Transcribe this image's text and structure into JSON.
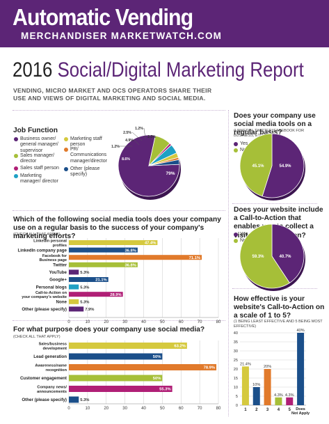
{
  "brand": {
    "title": "Automatic Vending",
    "subtitle": "MERCHANDISER  MARKETWATCH.COM"
  },
  "report": {
    "year": "2016",
    "title": "Social/Digital Marketing Report",
    "intro": "VENDING, MICRO MARKET AND OCS OPERATORS SHARE THEIR USE AND VIEWS OF DIGITAL MARKETING AND SOCIAL MEDIA."
  },
  "colors": {
    "purple": "#5c2576",
    "green": "#a6bf38",
    "blue": "#1b4f8a",
    "orange": "#e17a2b",
    "teal": "#1ea0c4",
    "magenta": "#b01f76",
    "yellow": "#d5c93e"
  },
  "job_legend": [
    {
      "label": "Business owner/ general manager/ supervisor",
      "color": "#5c2576"
    },
    {
      "label": "Sales manager/ director",
      "color": "#a6bf38"
    },
    {
      "label": "Sales staff person",
      "color": "#b01f76"
    },
    {
      "label": "Marketing manager/ director",
      "color": "#1ea0c4"
    },
    {
      "label": "Marketing staff person",
      "color": "#d5c93e"
    },
    {
      "label": "PR/ Communications manager/director",
      "color": "#e17a2b"
    },
    {
      "label": "Other (please specify)",
      "color": "#1b4f8a"
    }
  ],
  "chart_data": [
    {
      "type": "pie",
      "title": "Job Function",
      "categories": [
        "Business owner/ general manager/ supervisor",
        "Sales manager/ director",
        "Sales staff person",
        "Marketing manager/ director",
        "Marketing staff person",
        "PR/ Communications manager/director",
        "Other (please specify)"
      ],
      "values": [
        79,
        8.6,
        1.2,
        4.9,
        2.5,
        1.2,
        2.5
      ],
      "labels": [
        "79%",
        "8.6%",
        "1.2%",
        "4.9%",
        "2.5%",
        "1.2%",
        "2.5%"
      ],
      "colors": [
        "#5c2576",
        "#a6bf38",
        "#b01f76",
        "#1ea0c4",
        "#d5c93e",
        "#e17a2b",
        "#1b4f8a"
      ]
    },
    {
      "type": "pie",
      "title": "Does your company use social media tools on a regular basis?",
      "subtitle": "(LINKEDIN, TWITTER, FACEBOOK FOR BUSINESS, ETC.)",
      "categories": [
        "Yes",
        "No"
      ],
      "values": [
        54.9,
        45.1
      ],
      "labels": [
        "54.9%",
        "45.1%"
      ],
      "colors": [
        "#5c2576",
        "#a6bf38"
      ]
    },
    {
      "type": "pie",
      "title": "Does your website include a Call-to-Action that enables you to collect a visitor's information?",
      "categories": [
        "Yes",
        "No"
      ],
      "values": [
        40.7,
        59.3
      ],
      "labels": [
        "40.7%",
        "59.3%"
      ],
      "colors": [
        "#5c2576",
        "#a6bf38"
      ]
    },
    {
      "type": "bar",
      "orientation": "horizontal",
      "title": "Which of the following social media tools does your company use on a regular basis to the success of your company's marketing efforts?",
      "subtitle": "(CHECK ALL THAT APPLY)",
      "categories": [
        "LinkedIn personal profiles",
        "LinkedIn company page",
        "Facebook for Business page",
        "Twitter",
        "YouTube",
        "Google+",
        "Personal blogs",
        "Call-to-Action on your company's website",
        "None",
        "Other (please specify)"
      ],
      "values": [
        47.4,
        36.8,
        71.1,
        36.8,
        5.3,
        21.1,
        5.3,
        28.9,
        5.3,
        7.9
      ],
      "labels": [
        "47.4%",
        "36.8%",
        "71.1%",
        "36.8%",
        "5.3%",
        "21.1%",
        "5.3%",
        "28.9%",
        "5.3%",
        "7.9%"
      ],
      "colors": [
        "#d5c93e",
        "#1b4f8a",
        "#e17a2b",
        "#a6bf38",
        "#5c2576",
        "#1b4f8a",
        "#1ea0c4",
        "#b01f76",
        "#d5c93e",
        "#5c2576"
      ],
      "xticks": [
        "0",
        "10",
        "20",
        "30",
        "40",
        "50",
        "60",
        "70",
        "80"
      ],
      "xlim": [
        0,
        80
      ],
      "grid": true
    },
    {
      "type": "bar",
      "orientation": "horizontal",
      "title": "For what purpose does your company use social media?",
      "subtitle": "(CHECK ALL THAT APPLY)",
      "categories": [
        "Sales/business development",
        "Lead generation",
        "Awareness/name recognition",
        "Customer engagement",
        "Company news/ announcements",
        "Other (please specify)"
      ],
      "values": [
        63.2,
        50,
        78.9,
        50,
        55.3,
        5.3
      ],
      "labels": [
        "63.2%",
        "50%",
        "78.9%",
        "50%",
        "55.3%",
        "5.3%"
      ],
      "colors": [
        "#d5c93e",
        "#1b4f8a",
        "#e17a2b",
        "#a6bf38",
        "#b01f76",
        "#1b4f8a"
      ],
      "xticks": [
        "0",
        "10",
        "20",
        "30",
        "40",
        "50",
        "60",
        "70",
        "80"
      ],
      "xlim": [
        0,
        80
      ],
      "grid": true
    },
    {
      "type": "bar",
      "orientation": "vertical",
      "title": "How effective is your website's Call-to-Action on a scale of 1 to 5?",
      "subtitle": "(1 BEING LEAST EFFECTIVE AND 5 BEING MOST EFFECTIVE)",
      "categories": [
        "1",
        "2",
        "3",
        "4",
        "5",
        "Does Not Apply"
      ],
      "values": [
        21.4,
        10,
        20,
        4.3,
        4.3,
        40
      ],
      "labels": [
        "21.4%",
        "10%",
        "20%",
        "4.3%",
        "4.3%",
        "40%"
      ],
      "colors": [
        "#d5c93e",
        "#1b4f8a",
        "#e17a2b",
        "#a6bf38",
        "#b01f76",
        "#1b4f8a"
      ],
      "yticks": [
        "0",
        "5",
        "10",
        "15",
        "20",
        "25",
        "30",
        "35",
        "40"
      ],
      "ylim": [
        0,
        40
      ],
      "grid": true
    }
  ]
}
